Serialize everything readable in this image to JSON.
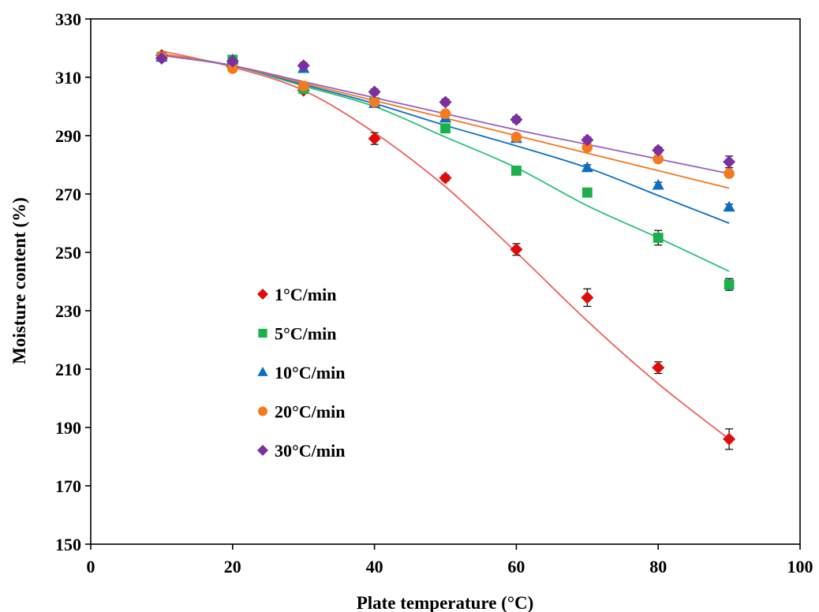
{
  "chart_data": {
    "type": "scatter",
    "title": "",
    "xlabel": "Plate temperature (°C)",
    "ylabel": "Moisture content (%)",
    "xlim": [
      0,
      100
    ],
    "ylim": [
      150,
      330
    ],
    "x_ticks": [
      0,
      20,
      40,
      60,
      80,
      100
    ],
    "y_ticks": [
      150,
      170,
      190,
      210,
      230,
      250,
      270,
      290,
      310,
      330
    ],
    "grid": false,
    "legend_position": "center-left",
    "x": [
      10,
      20,
      30,
      40,
      50,
      60,
      70,
      80,
      90
    ],
    "series": [
      {
        "name": "1°C/min",
        "marker": "diamond",
        "color": "#e00b0b",
        "line_color": "#f06060",
        "values": [
          317.5,
          313.5,
          305.5,
          289.0,
          275.5,
          251.0,
          234.5,
          210.5,
          186.0
        ],
        "errors": [
          1.0,
          1.0,
          1.0,
          2.0,
          1.0,
          2.0,
          3.0,
          2.0,
          3.5
        ],
        "fit": [
          319.0,
          313.5,
          305.5,
          291.0,
          272.5,
          250.0,
          226.5,
          205.0,
          186.0
        ]
      },
      {
        "name": "5°C/min",
        "marker": "square",
        "color": "#1ab04b",
        "line_color": "#2ec07a",
        "values": [
          317.0,
          316.0,
          306.0,
          301.5,
          292.5,
          278.0,
          270.5,
          255.0,
          239.0
        ],
        "errors": [
          1.0,
          1.0,
          1.0,
          1.0,
          1.0,
          1.0,
          1.0,
          2.5,
          2.0
        ],
        "fit": [
          318.0,
          314.0,
          307.0,
          300.0,
          289.5,
          279.0,
          266.0,
          255.0,
          243.5
        ]
      },
      {
        "name": "10°C/min",
        "marker": "triangle",
        "color": "#0b6fc4",
        "line_color": "#0b6fc4",
        "values": [
          317.0,
          316.0,
          313.0,
          301.0,
          296.0,
          289.0,
          279.0,
          273.0,
          265.5
        ],
        "errors": [
          1.0,
          1.0,
          1.0,
          1.0,
          1.0,
          1.0,
          1.0,
          1.0,
          1.0
        ],
        "fit": [
          318.0,
          314.0,
          307.5,
          301.0,
          293.5,
          286.5,
          279.0,
          269.5,
          260.0
        ]
      },
      {
        "name": "20°C/min",
        "marker": "circle",
        "color": "#f5791e",
        "line_color": "#f5791e",
        "values": [
          317.0,
          313.0,
          307.0,
          301.5,
          297.5,
          289.5,
          286.0,
          282.0,
          277.0
        ],
        "errors": [
          1.0,
          1.0,
          1.0,
          1.0,
          1.0,
          1.0,
          1.0,
          1.0,
          1.0
        ],
        "fit": [
          318.0,
          314.0,
          308.0,
          302.0,
          296.0,
          290.0,
          284.0,
          278.0,
          272.0
        ]
      },
      {
        "name": "30°C/min",
        "marker": "diamond",
        "color": "#7b2fa0",
        "line_color": "#9b5fc0",
        "values": [
          316.5,
          315.5,
          314.0,
          305.0,
          301.5,
          295.5,
          288.5,
          285.0,
          281.0
        ],
        "errors": [
          1.0,
          1.0,
          1.0,
          1.0,
          1.0,
          1.0,
          1.0,
          1.0,
          2.0
        ],
        "fit": [
          317.5,
          314.0,
          308.5,
          303.0,
          297.5,
          292.0,
          287.0,
          282.0,
          277.0
        ]
      }
    ]
  }
}
